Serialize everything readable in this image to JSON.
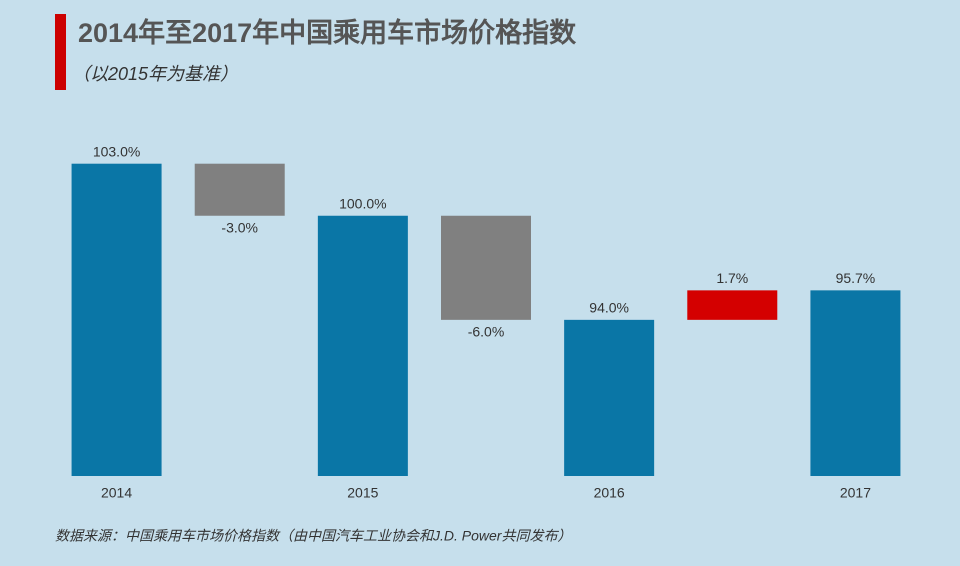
{
  "chart_data": {
    "type": "waterfall",
    "title": "2014年至2017年中国乘用车市场价格指数",
    "subtitle": "（以2015年为基准）",
    "source": "数据来源：中国乘用车市场价格指数（由中国汽车工业协会和J.D. Power共同发布）",
    "categories": [
      "2014",
      null,
      "2015",
      null,
      "2016",
      null,
      "2017"
    ],
    "measures": [
      "total",
      "relative",
      "total",
      "relative",
      "total",
      "relative",
      "total"
    ],
    "values": [
      103.0,
      -3.0,
      100.0,
      -6.0,
      94.0,
      1.7,
      95.7
    ],
    "value_labels": [
      "103.0%",
      "-3.0%",
      "100.0%",
      "-6.0%",
      "94.0%",
      "1.7%",
      "95.7%"
    ],
    "colors": {
      "total": "#0a76a6",
      "decrease": "#808080",
      "increase": "#d40000"
    },
    "ylim": [
      85,
      105
    ]
  }
}
